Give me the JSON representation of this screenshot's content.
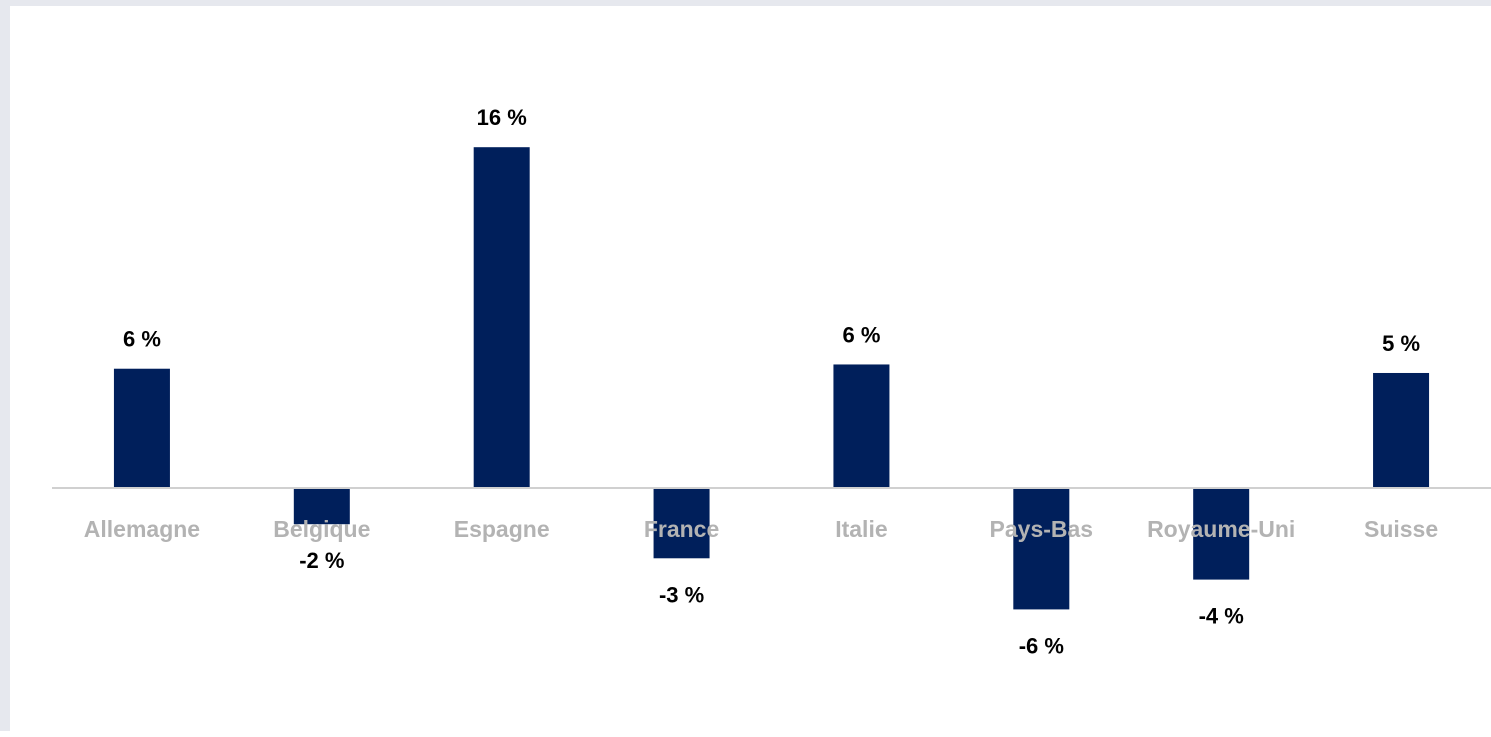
{
  "chart_data": {
    "type": "bar",
    "categories": [
      "Allemagne",
      "Belgique",
      "Espagne",
      "France",
      "Italie",
      "Pays-Bas",
      "Royaume-Uni",
      "Suisse"
    ],
    "values": [
      5.6,
      -1.7,
      16.0,
      -3.3,
      5.8,
      -5.7,
      -4.3,
      5.4
    ],
    "data_labels": [
      "6 %",
      "-2 %",
      "16 %",
      "-3 %",
      "6 %",
      "-6 %",
      "-4 %",
      "5 %"
    ],
    "title": "",
    "xlabel": "",
    "ylabel": "",
    "ylim": [
      -11.7,
      22.3
    ],
    "grid": false,
    "legend": "none",
    "colors": {
      "bar": "#001f5b",
      "axis": "#d0d0d0",
      "category_text": "#b3b3b3",
      "value_text": "#000000"
    }
  }
}
